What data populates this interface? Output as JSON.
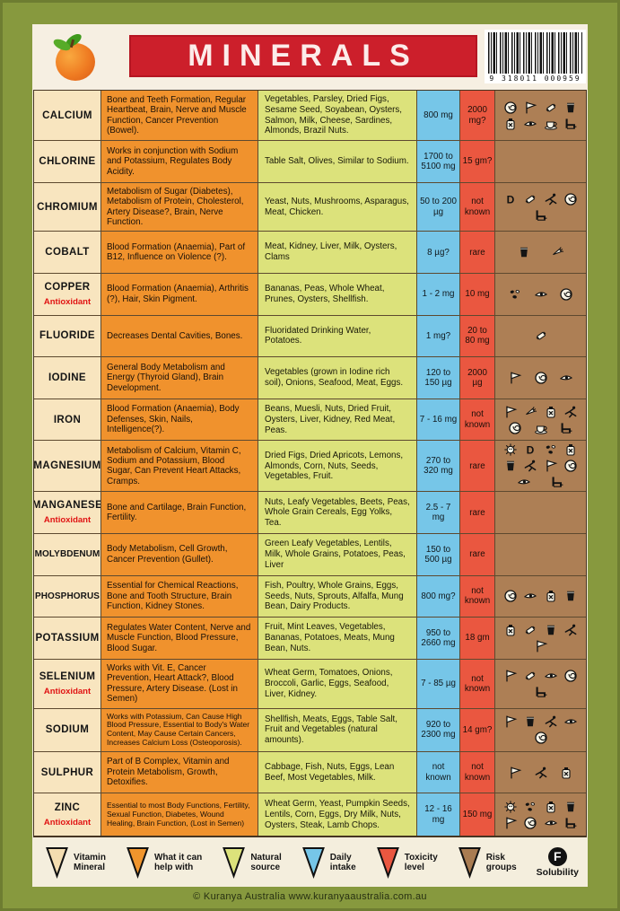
{
  "header": {
    "title": "MINERALS",
    "barcode_digits": "9 318011 000959",
    "title_bg": "#cc1f2b"
  },
  "table": {
    "antioxidant_label": "Antioxidant",
    "rows": [
      {
        "name": "CALCIUM",
        "antioxidant": false,
        "help": "Bone and Teeth Formation, Regular Heartbeat, Brain, Nerve and Muscle Function, Cancer Prevention (Bowel).",
        "source": "Vegetables, Parsley, Dried Figs, Sesame Seed, Soyabean, Oysters, Salmon, Milk, Cheese, Sardines, Almonds, Brazil Nuts.",
        "daily": "800 mg",
        "toxicity": "2000 mg?",
        "icons": [
          "shell",
          "flag",
          "packet",
          "glass",
          "bottle",
          "eye",
          "cup",
          "chair"
        ]
      },
      {
        "name": "CHLORINE",
        "antioxidant": false,
        "help": "Works in conjunction with Sodium and Potassium, Regulates Body Acidity.",
        "source": "Table Salt, Olives, Similar to Sodium.",
        "daily": "1700 to 5100 mg",
        "toxicity": "15 gm?",
        "icons": []
      },
      {
        "name": "CHROMIUM",
        "antioxidant": false,
        "help": "Metabolism of Sugar (Diabetes), Metabolism of Protein, Cholesterol, Artery Disease?, Brain, Nerve Function.",
        "source": "Yeast, Nuts, Mushrooms, Asparagus, Meat, Chicken.",
        "daily": "50 to 200 µg",
        "toxicity": "not known",
        "icons": [
          "letter-d",
          "packet",
          "runner",
          "shell",
          "chair"
        ]
      },
      {
        "name": "COBALT",
        "antioxidant": false,
        "help": "Blood Formation (Anaemia), Part of B12, Influence on Violence (?).",
        "source": "Meat, Kidney, Liver, Milk, Oysters, Clams",
        "daily": "8 µg?",
        "toxicity": "rare",
        "icons": [
          "glass",
          "carrot"
        ]
      },
      {
        "name": "COPPER",
        "antioxidant": true,
        "help": "Blood Formation (Anaemia), Arthritis (?), Hair, Skin Pigment.",
        "source": "Bananas, Peas, Whole Wheat, Prunes, Oysters, Shellfish.",
        "daily": "1 - 2 mg",
        "toxicity": "10 mg",
        "icons": [
          "pills",
          "eye",
          "shell"
        ]
      },
      {
        "name": "FLUORIDE",
        "antioxidant": false,
        "help": "Decreases Dental Cavities, Bones.",
        "source": "Fluoridated Drinking Water, Potatoes.",
        "daily": "1 mg?",
        "toxicity": "20 to 80 mg",
        "icons": [
          "packet"
        ]
      },
      {
        "name": "IODINE",
        "antioxidant": false,
        "help": "General Body Metabolism and Energy (Thyroid Gland), Brain Development.",
        "source": "Vegetables (grown in Iodine rich soil), Onions, Seafood, Meat, Eggs.",
        "daily": "120 to 150 µg",
        "toxicity": "2000 µg",
        "icons": [
          "flag",
          "shell",
          "eye"
        ]
      },
      {
        "name": "IRON",
        "antioxidant": false,
        "help": "Blood Formation (Anaemia), Body Defenses, Skin, Nails, Intelligence(?).",
        "source": "Beans, Muesli, Nuts, Dried Fruit, Oysters, Liver, Kidney, Red Meat, Peas.",
        "daily": "7 - 16 mg",
        "toxicity": "not known",
        "icons": [
          "flag",
          "carrot",
          "bottle",
          "runner",
          "shell",
          "cup",
          "chair"
        ]
      },
      {
        "name": "MAGNESIUM",
        "antioxidant": false,
        "help": "Metabolism of Calcium, Vitamin C, Sodium and Potassium, Blood Sugar, Can Prevent Heart Attacks, Cramps.",
        "source": "Dried Figs, Dried Apricots, Lemons,  Almonds, Corn, Nuts, Seeds, Vegetables, Fruit.",
        "daily": "270 to 320 mg",
        "toxicity": "rare",
        "icons": [
          "spiky",
          "letter-d",
          "pills",
          "bottle",
          "glass",
          "runner",
          "flag",
          "shell",
          "eye",
          "chair"
        ]
      },
      {
        "name": "MANGANESE",
        "antioxidant": true,
        "help": "Bone and Cartilage, Brain Function, Fertility.",
        "source": "Nuts, Leafy Vegetables, Beets, Peas, Whole Grain Cereals, Egg Yolks, Tea.",
        "daily": "2.5 - 7 mg",
        "toxicity": "rare",
        "icons": []
      },
      {
        "name": "MOLYBDENUM",
        "antioxidant": false,
        "help": "Body Metabolism, Cell Growth, Cancer Prevention (Gullet).",
        "source": "Green Leafy Vegetables, Lentils, Milk, Whole Grains, Potatoes, Peas, Liver",
        "daily": "150 to 500 µg",
        "toxicity": "rare",
        "icons": []
      },
      {
        "name": "PHOSPHORUS",
        "antioxidant": false,
        "help": "Essential for Chemical Reactions, Bone and Tooth Structure, Brain Function, Kidney Stones.",
        "source": "Fish, Poultry, Whole Grains, Eggs, Seeds, Nuts, Sprouts, Alfalfa, Mung Bean, Dairy Products.",
        "daily": "800 mg?",
        "toxicity": "not known",
        "icons": [
          "shell",
          "eye",
          "bottle",
          "glass"
        ]
      },
      {
        "name": "POTASSIUM",
        "antioxidant": false,
        "help": "Regulates Water Content, Nerve and Muscle Function, Blood Pressure, Blood Sugar.",
        "source": "Fruit, Mint Leaves, Vegetables, Bananas, Potatoes, Meats, Mung Bean, Nuts.",
        "daily": "950 to 2660 mg",
        "toxicity": "18 gm",
        "icons": [
          "bottle",
          "packet",
          "glass",
          "runner",
          "flag"
        ]
      },
      {
        "name": "SELENIUM",
        "antioxidant": true,
        "help": "Works with Vit. E, Cancer Prevention, Heart Attack?, Blood Pressure, Artery Disease. (Lost in Semen)",
        "source": "Wheat Germ, Tomatoes, Onions, Broccoli, Garlic, Eggs, Seafood, Liver, Kidney.",
        "daily": "7 - 85 µg",
        "toxicity": "not known",
        "icons": [
          "flag",
          "packet",
          "eye",
          "shell",
          "chair"
        ]
      },
      {
        "name": "SODIUM",
        "antioxidant": false,
        "help": "Works with Potassium, Can Cause High Blood Pressure, Essential to Body's Water Content, May Cause Certain Cancers, Increases Calcium Loss (Osteoporosis).",
        "source": "Shellfish, Meats, Eggs, Table Salt, Fruit and Vegetables (natural amounts).",
        "daily": "920 to 2300 mg",
        "toxicity": "14 gm?",
        "icons": [
          "flag",
          "glass",
          "runner",
          "eye",
          "shell"
        ]
      },
      {
        "name": "SULPHUR",
        "antioxidant": false,
        "help": "Part of B Complex, Vitamin and Protein Metabolism, Growth, Detoxifies.",
        "source": "Cabbage, Fish, Nuts, Eggs, Lean Beef, Most Vegetables, Milk.",
        "daily": "not known",
        "toxicity": "not known",
        "icons": [
          "flag",
          "runner",
          "bottle"
        ]
      },
      {
        "name": "ZINC",
        "antioxidant": true,
        "help": "Essential to most Body Functions, Fertility, Sexual Function, Diabetes, Wound Healing, Brain Function, (Lost in Semen)",
        "source": "Wheat Germ, Yeast, Pumpkin Seeds, Lentils, Corn, Eggs, Dry Milk, Nuts, Oysters, Steak, Lamb Chops.",
        "daily": "12 - 16 mg",
        "toxicity": "150 mg",
        "icons": [
          "spiky",
          "pills",
          "bottle",
          "glass",
          "flag",
          "shell",
          "eye",
          "chair"
        ]
      }
    ]
  },
  "legend": {
    "items": [
      {
        "lines": [
          "Vitamin",
          "Mineral"
        ],
        "color": "#f4ddb0"
      },
      {
        "lines": [
          "What it can",
          "help with"
        ],
        "color": "#f0952d"
      },
      {
        "lines": [
          "Natural",
          "source"
        ],
        "color": "#dce27b"
      },
      {
        "lines": [
          "Daily",
          "intake"
        ],
        "color": "#76c6e8"
      },
      {
        "lines": [
          "Toxicity",
          "level"
        ],
        "color": "#ea5740"
      },
      {
        "lines": [
          "Risk",
          "groups"
        ],
        "color": "#a97c52"
      }
    ],
    "solubility": {
      "symbol": "F",
      "label": "Solubility"
    }
  },
  "footer": {
    "text": "© Kuranya Australia   www.kuranyaaustralia.com.au"
  }
}
